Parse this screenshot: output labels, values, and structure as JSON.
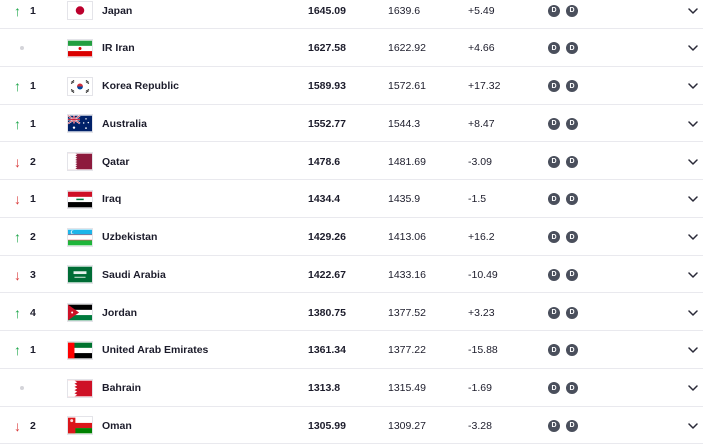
{
  "rows": [
    {
      "move": "up",
      "change": "1",
      "team": "Japan",
      "flag": "japan",
      "points": "1645.09",
      "previous": "1639.6",
      "diff": "+5.49",
      "badges": [
        "D",
        "D"
      ]
    },
    {
      "move": "none",
      "change": "",
      "team": "IR Iran",
      "flag": "iran",
      "points": "1627.58",
      "previous": "1622.92",
      "diff": "+4.66",
      "badges": [
        "D",
        "D"
      ]
    },
    {
      "move": "up",
      "change": "1",
      "team": "Korea Republic",
      "flag": "korea",
      "points": "1589.93",
      "previous": "1572.61",
      "diff": "+17.32",
      "badges": [
        "D",
        "D"
      ]
    },
    {
      "move": "up",
      "change": "1",
      "team": "Australia",
      "flag": "australia",
      "points": "1552.77",
      "previous": "1544.3",
      "diff": "+8.47",
      "badges": [
        "D",
        "D"
      ]
    },
    {
      "move": "down",
      "change": "2",
      "team": "Qatar",
      "flag": "qatar",
      "points": "1478.6",
      "previous": "1481.69",
      "diff": "-3.09",
      "badges": [
        "D",
        "D"
      ]
    },
    {
      "move": "down",
      "change": "1",
      "team": "Iraq",
      "flag": "iraq",
      "points": "1434.4",
      "previous": "1435.9",
      "diff": "-1.5",
      "badges": [
        "D",
        "D"
      ]
    },
    {
      "move": "up",
      "change": "2",
      "team": "Uzbekistan",
      "flag": "uzbekistan",
      "points": "1429.26",
      "previous": "1413.06",
      "diff": "+16.2",
      "badges": [
        "D",
        "D"
      ]
    },
    {
      "move": "down",
      "change": "3",
      "team": "Saudi Arabia",
      "flag": "saudi",
      "points": "1422.67",
      "previous": "1433.16",
      "diff": "-10.49",
      "badges": [
        "D",
        "D"
      ]
    },
    {
      "move": "up",
      "change": "4",
      "team": "Jordan",
      "flag": "jordan",
      "points": "1380.75",
      "previous": "1377.52",
      "diff": "+3.23",
      "badges": [
        "D",
        "D"
      ]
    },
    {
      "move": "up",
      "change": "1",
      "team": "United Arab Emirates",
      "flag": "uae",
      "points": "1361.34",
      "previous": "1377.22",
      "diff": "-15.88",
      "badges": [
        "D",
        "D"
      ]
    },
    {
      "move": "none",
      "change": "",
      "team": "Bahrain",
      "flag": "bahrain",
      "points": "1313.8",
      "previous": "1315.49",
      "diff": "-1.69",
      "badges": [
        "D",
        "D"
      ]
    },
    {
      "move": "down",
      "change": "2",
      "team": "Oman",
      "flag": "oman",
      "points": "1305.99",
      "previous": "1309.27",
      "diff": "-3.28",
      "badges": [
        "D",
        "D"
      ]
    }
  ],
  "colors": {
    "up": "#1fa64a",
    "down": "#d93a3a",
    "badge": "#4a4f5c"
  },
  "icons": {
    "up": "arrow-up-icon",
    "down": "arrow-down-icon",
    "expand": "chevron-down-icon"
  }
}
